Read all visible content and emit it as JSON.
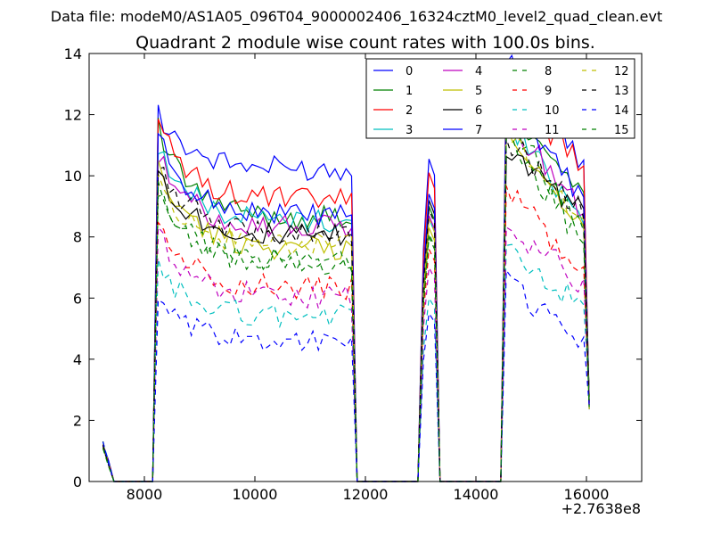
{
  "chart_data": {
    "type": "line",
    "suptitle": "Data file: modeM0/AS1A05_096T04_9000002406_16324cztM0_level2_quad_clean.evt",
    "title": "Quadrant 2 module wise count rates with 100.0s bins.",
    "xlabel": "",
    "ylabel": "",
    "xlim": [
      7000,
      17000
    ],
    "ylim": [
      0,
      14
    ],
    "x_offset_label": "+2.7638e8",
    "x_ticks": [
      8000,
      10000,
      12000,
      14000,
      16000
    ],
    "x_tick_labels": [
      "8000",
      "10000",
      "12000",
      "14000",
      "16000"
    ],
    "y_ticks": [
      0,
      2,
      4,
      6,
      8,
      10,
      12,
      14
    ],
    "y_tick_labels": [
      "0",
      "2",
      "4",
      "6",
      "8",
      "10",
      "12",
      "14"
    ],
    "legend_position": "upper-right",
    "legend_columns": 4,
    "x": [
      7250,
      7350,
      7450,
      7550,
      7650,
      7750,
      7850,
      7950,
      8050,
      8150,
      8250,
      8350,
      8450,
      8550,
      8650,
      8750,
      8850,
      8950,
      9050,
      9150,
      9250,
      9350,
      9450,
      9550,
      9650,
      9750,
      9850,
      9950,
      10050,
      10150,
      10250,
      10350,
      10450,
      10550,
      10650,
      10750,
      10850,
      10950,
      11050,
      11150,
      11250,
      11350,
      11450,
      11550,
      11650,
      11750,
      11850,
      11950,
      12050,
      12150,
      12250,
      12350,
      12450,
      12550,
      12650,
      12750,
      12850,
      12950,
      13050,
      13150,
      13250,
      13350,
      13450,
      13550,
      13650,
      13750,
      13850,
      13950,
      14050,
      14150,
      14250,
      14350,
      14450,
      14550,
      14650,
      14750,
      14850,
      14950,
      15050,
      15150,
      15250,
      15350,
      15450,
      15550,
      15650,
      15750,
      15850,
      15950,
      16050
    ],
    "series": [
      {
        "name": "0",
        "color": "#0000ff",
        "style": "solid",
        "level": 10.2,
        "peakA": 12.1,
        "peakB": 10.55,
        "peakC": 13.95,
        "endC": 10.3,
        "seed": 1
      },
      {
        "name": "1",
        "color": "#008000",
        "style": "solid",
        "level": 8.6,
        "peakA": 11.5,
        "peakB": 9.0,
        "peakC": 12.4,
        "endC": 9.3,
        "seed": 2
      },
      {
        "name": "2",
        "color": "#ff0000",
        "style": "solid",
        "level": 9.2,
        "peakA": 11.6,
        "peakB": 10.1,
        "peakC": 12.8,
        "endC": 10.3,
        "seed": 3
      },
      {
        "name": "3",
        "color": "#00bfbf",
        "style": "solid",
        "level": 8.5,
        "peakA": 10.9,
        "peakB": 8.6,
        "peakC": 11.8,
        "endC": 8.6,
        "seed": 4
      },
      {
        "name": "4",
        "color": "#bf00bf",
        "style": "solid",
        "level": 8.3,
        "peakA": 10.6,
        "peakB": 8.7,
        "peakC": 11.9,
        "endC": 8.9,
        "seed": 5
      },
      {
        "name": "5",
        "color": "#bfbf00",
        "style": "solid",
        "level": 7.6,
        "peakA": 10.3,
        "peakB": 8.3,
        "peakC": 11.6,
        "endC": 8.4,
        "seed": 6
      },
      {
        "name": "6",
        "color": "#000000",
        "style": "solid",
        "level": 8.0,
        "peakA": 10.2,
        "peakB": 9.2,
        "peakC": 11.0,
        "endC": 8.7,
        "seed": 7
      },
      {
        "name": "7",
        "color": "#0000ff",
        "style": "solid",
        "level": 8.7,
        "peakA": 11.2,
        "peakB": 9.4,
        "peakC": 12.5,
        "endC": 9.3,
        "seed": 8
      },
      {
        "name": "8",
        "color": "#008000",
        "style": "dashed",
        "level": 7.2,
        "peakA": 9.7,
        "peakB": 8.1,
        "peakC": 12.0,
        "endC": 8.0,
        "seed": 9
      },
      {
        "name": "9",
        "color": "#ff0000",
        "style": "dashed",
        "level": 6.3,
        "peakA": 8.6,
        "peakB": 7.6,
        "peakC": 9.6,
        "endC": 6.7,
        "seed": 10
      },
      {
        "name": "10",
        "color": "#00bfbf",
        "style": "dashed",
        "level": 5.4,
        "peakA": 7.0,
        "peakB": 6.0,
        "peakC": 7.6,
        "endC": 5.6,
        "seed": 11
      },
      {
        "name": "11",
        "color": "#bf00bf",
        "style": "dashed",
        "level": 6.0,
        "peakA": 8.2,
        "peakB": 7.0,
        "peakC": 8.3,
        "endC": 6.5,
        "seed": 12
      },
      {
        "name": "12",
        "color": "#bfbf00",
        "style": "dashed",
        "level": 7.7,
        "peakA": 9.8,
        "peakB": 8.6,
        "peakC": 11.5,
        "endC": 8.2,
        "seed": 13
      },
      {
        "name": "13",
        "color": "#000000",
        "style": "dashed",
        "level": 8.1,
        "peakA": 10.4,
        "peakB": 8.9,
        "peakC": 11.2,
        "endC": 8.9,
        "seed": 14
      },
      {
        "name": "14",
        "color": "#0000ff",
        "style": "dashed",
        "level": 4.6,
        "peakA": 5.7,
        "peakB": 5.5,
        "peakC": 6.6,
        "endC": 4.4,
        "seed": 15
      },
      {
        "name": "15",
        "color": "#008000",
        "style": "dashed",
        "level": 7.1,
        "peakA": 9.6,
        "peakB": 8.0,
        "peakC": 11.4,
        "endC": 7.8,
        "seed": 16
      }
    ]
  }
}
